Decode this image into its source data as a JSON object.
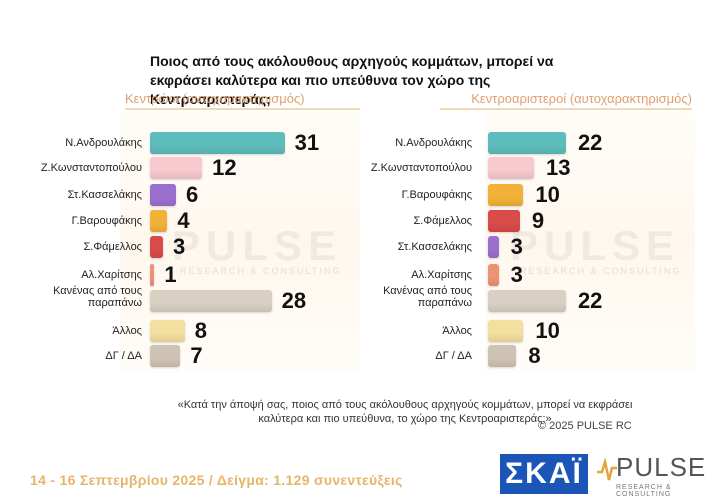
{
  "title": "Ποιος από τους ακόλουθους αρχηγούς κομμάτων, μπορεί να εκφράσει καλύτερα και πιο υπεύθυνα τον χώρο της Κεντροαριστεράς;",
  "watermark": "PULSE",
  "watermark_sub": "RESEARCH & CONSULTING",
  "note": "«Κατά την άποψή σας, ποιος από τους ακόλουθους αρχηγούς κομμάτων, μπορεί να εκφράσει καλύτερα και πιο υπεύθυνα, το χώρο της Κεντροαριστεράς;»",
  "copyright": "©  2025  PULSE RC",
  "footer": "14 - 16 Σεπτεμβρίου 2025  /  Δείγμα:  1.129 συνεντεύξεις",
  "logos": {
    "skai": "ΣΚΑΪ",
    "pulse": "PULSE",
    "pulse_sub": "RESEARCH & CONSULTING"
  },
  "chart_data": [
    {
      "type": "bar",
      "orientation": "horizontal",
      "subtitle": "Κεντρώοι  (αυτοχαρακτηρισμός)",
      "categories": [
        "Ν.Ανδρουλάκης",
        "Ζ.Κωνσταντοπούλου",
        "Στ.Κασσελάκης",
        "Γ.Βαρουφάκης",
        "Σ.Φάμελλος",
        "Αλ.Χαρίτσης",
        "Κανένας από τους παραπάνω",
        "Άλλος",
        "ΔΓ / ΔΑ"
      ],
      "values": [
        31,
        12,
        6,
        4,
        3,
        1,
        28,
        8,
        7
      ],
      "colors": [
        "#5fbcbc",
        "#f6c9cf",
        "#9b6fcf",
        "#f2b23a",
        "#d94a4a",
        "#ec9275",
        "#d9d0c4",
        "#f3dfa0",
        "#cfc3b4"
      ],
      "xlim": [
        0,
        35
      ]
    },
    {
      "type": "bar",
      "orientation": "horizontal",
      "subtitle": "Κεντροαριστεροί  (αυτοχαρακτηρισμός)",
      "categories": [
        "Ν.Ανδρουλάκης",
        "Ζ.Κωνσταντοπούλου",
        "Γ.Βαρουφάκης",
        "Σ.Φάμελλος",
        "Στ.Κασσελάκης",
        "Αλ.Χαρίτσης",
        "Κανένας από τους παραπάνω",
        "Άλλος",
        "ΔΓ / ΔΑ"
      ],
      "values": [
        22,
        13,
        10,
        9,
        3,
        3,
        22,
        10,
        8
      ],
      "colors": [
        "#5fbcbc",
        "#f6c9cf",
        "#f2b23a",
        "#d94a4a",
        "#9b6fcf",
        "#ec9275",
        "#d9d0c4",
        "#f3dfa0",
        "#cfc3b4"
      ],
      "xlim": [
        0,
        35
      ]
    }
  ]
}
